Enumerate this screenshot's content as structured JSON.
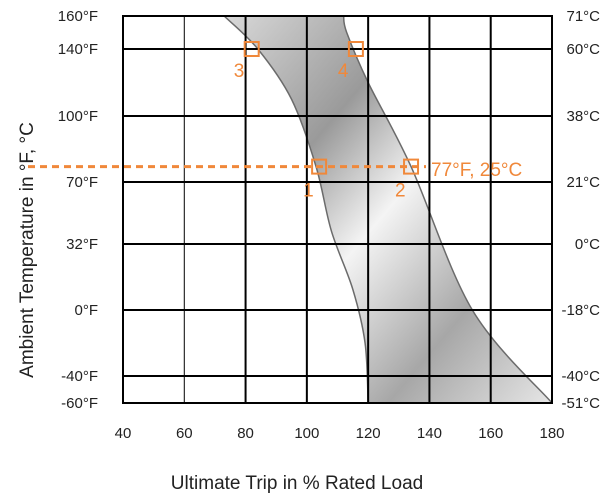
{
  "chart_data": {
    "type": "area",
    "title": "",
    "xlabel": "Ultimate Trip in % Rated Load",
    "ylabel": "Ambient Temperature in °F, °C",
    "xlim": [
      40,
      180
    ],
    "x_ticks": [
      {
        "value": 40,
        "label": "40"
      },
      {
        "value": 60,
        "label": "60"
      },
      {
        "value": 80,
        "label": "80"
      },
      {
        "value": 100,
        "label": "100"
      },
      {
        "value": 120,
        "label": "120"
      },
      {
        "value": 140,
        "label": "140"
      },
      {
        "value": 160,
        "label": "160"
      },
      {
        "value": 180,
        "label": "180"
      }
    ],
    "y_ticks": [
      {
        "rank": 0,
        "label": "-60°F"
      },
      {
        "rank": 1,
        "label": "-40°F"
      },
      {
        "rank": 2,
        "label": "0°F"
      },
      {
        "rank": 3,
        "label": "32°F"
      },
      {
        "rank": 4,
        "label": "70°F"
      },
      {
        "rank": 5,
        "label": "100°F"
      },
      {
        "rank": 6,
        "label": "140°F"
      },
      {
        "rank": 7,
        "label": "160°F"
      }
    ],
    "y2_ticks": [
      {
        "rank": 0,
        "label": "-51°C"
      },
      {
        "rank": 1,
        "label": "-40°C"
      },
      {
        "rank": 2,
        "label": "-18°C"
      },
      {
        "rank": 3,
        "label": "0°C"
      },
      {
        "rank": 4,
        "label": "21°C"
      },
      {
        "rank": 5,
        "label": "38°C"
      },
      {
        "rank": 6,
        "label": "60°C"
      },
      {
        "rank": 7,
        "label": "71°C"
      }
    ],
    "band": {
      "name": "",
      "left_edge": [
        {
          "pct": 120,
          "temp": -60
        },
        {
          "pct": 119,
          "temp": -20
        },
        {
          "pct": 115,
          "temp": 10
        },
        {
          "pct": 108,
          "temp": 40
        },
        {
          "pct": 103,
          "temp": 77
        },
        {
          "pct": 95,
          "temp": 110
        },
        {
          "pct": 84,
          "temp": 140
        },
        {
          "pct": 73,
          "temp": 160
        }
      ],
      "right_edge": [
        {
          "pct": 180,
          "temp": -60
        },
        {
          "pct": 154,
          "temp": 0
        },
        {
          "pct": 134,
          "temp": 77
        },
        {
          "pct": 120,
          "temp": 120
        },
        {
          "pct": 113,
          "temp": 150
        },
        {
          "pct": 112,
          "temp": 160
        }
      ]
    },
    "reference_line": {
      "temp": 77,
      "label": "77°F, 25°C"
    },
    "markers": [
      {
        "label": "1",
        "pct": 104,
        "temp": 77
      },
      {
        "label": "2",
        "pct": 134,
        "temp": 77
      },
      {
        "label": "3",
        "pct": 82,
        "temp": 140
      },
      {
        "label": "4",
        "pct": 116,
        "temp": 140
      }
    ],
    "grid": true,
    "colors": {
      "annotation": "#f0883a",
      "band_fill_dark": "#8e8e8e",
      "band_fill_light": "#f4f4f4",
      "band_edge": "#6b6b6b",
      "grid": "#000000"
    }
  }
}
